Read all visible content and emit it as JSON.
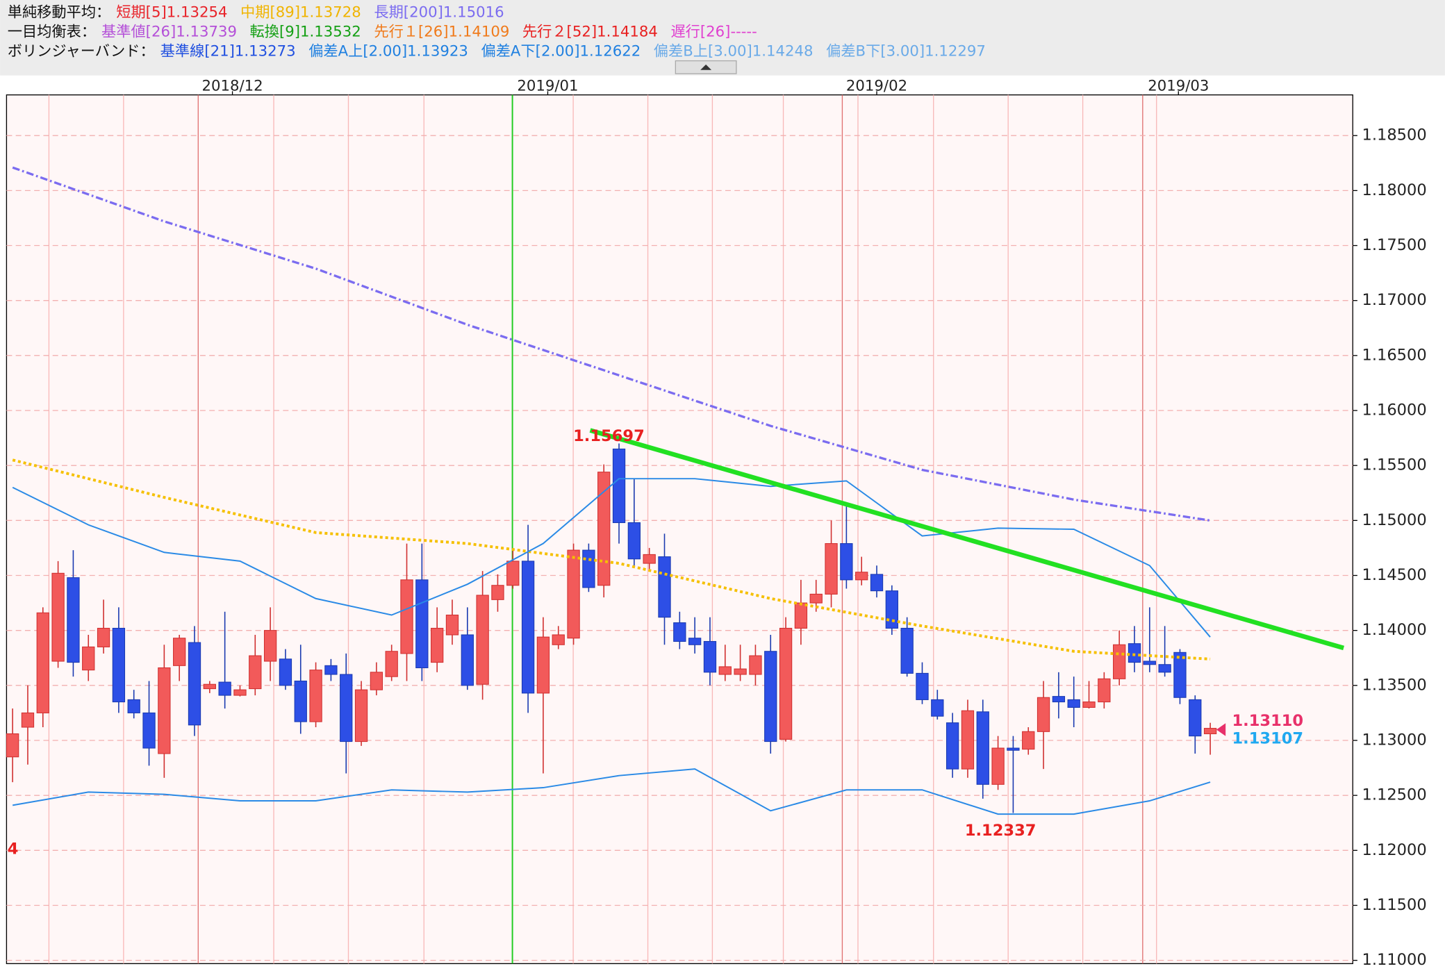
{
  "header": {
    "lines": [
      {
        "label": "単純移動平均：",
        "items": [
          {
            "text": "短期[5]1.13254",
            "color": "#e8232a"
          },
          {
            "text": "中期[89]1.13728",
            "color": "#f0b400"
          },
          {
            "text": "長期[200]1.15016",
            "color": "#7b6cf0"
          }
        ]
      },
      {
        "label": "一目均衡表：",
        "items": [
          {
            "text": "基準値[26]1.13739",
            "color": "#b44fd8"
          },
          {
            "text": "転換[9]1.13532",
            "color": "#15a015"
          },
          {
            "text": "先行１[26]1.14109",
            "color": "#f07a1a"
          },
          {
            "text": "先行２[52]1.14184",
            "color": "#e82020"
          },
          {
            "text": "遅行[26]-----",
            "color": "#e040d0"
          }
        ]
      },
      {
        "label": "ボリンジャーバンド：",
        "items": [
          {
            "text": "基準線[21]1.13273",
            "color": "#2050e0"
          },
          {
            "text": "偏差A上[2.00]1.13923",
            "color": "#2080e0"
          },
          {
            "text": "偏差A下[2.00]1.12622",
            "color": "#2080e0"
          },
          {
            "text": "偏差B上[3.00]1.14248",
            "color": "#6aaae8"
          },
          {
            "text": "偏差B下[3.00]1.12297",
            "color": "#6aaae8"
          }
        ]
      }
    ]
  },
  "chart_data": {
    "type": "candlestick",
    "xlim": [
      -0.4,
      88.4
    ],
    "xticks": [
      {
        "value": 14.5,
        "label": "2018/12"
      },
      {
        "value": 35.3,
        "label": "2019/01"
      },
      {
        "value": 57.0,
        "label": "2019/02"
      },
      {
        "value": 76.9,
        "label": "2019/03"
      }
    ],
    "ylim": [
      1.1097,
      1.1887
    ],
    "yticks": [
      {
        "value": 1.11,
        "label": "1.11000"
      },
      {
        "value": 1.115,
        "label": "1.11500"
      },
      {
        "value": 1.12,
        "label": "1.12000"
      },
      {
        "value": 1.125,
        "label": "1.12500"
      },
      {
        "value": 1.13,
        "label": "1.13000"
      },
      {
        "value": 1.135,
        "label": "1.13500"
      },
      {
        "value": 1.14,
        "label": "1.14000"
      },
      {
        "value": 1.145,
        "label": "1.14500"
      },
      {
        "value": 1.15,
        "label": "1.15000"
      },
      {
        "value": 1.155,
        "label": "1.15500"
      },
      {
        "value": 1.16,
        "label": "1.16000"
      },
      {
        "value": 1.165,
        "label": "1.16500"
      },
      {
        "value": 1.17,
        "label": "1.17000"
      },
      {
        "value": 1.175,
        "label": "1.17500"
      },
      {
        "value": 1.18,
        "label": "1.18000"
      },
      {
        "value": 1.185,
        "label": "1.18500"
      }
    ],
    "grid": true,
    "up_color": "#f25a5a",
    "down_color": "#2d4fe6",
    "candles": {
      "open": [
        1.1285,
        1.1312,
        1.1325,
        1.1372,
        1.1448,
        1.1364,
        1.1385,
        1.1402,
        1.1337,
        1.1325,
        1.1288,
        1.1368,
        1.1389,
        1.1347,
        1.1353,
        1.1341,
        1.1347,
        1.1372,
        1.1374,
        1.1354,
        1.1317,
        1.1368,
        1.136,
        1.1299,
        1.1346,
        1.1358,
        1.1379,
        1.1446,
        1.1371,
        1.1396,
        1.1396,
        1.1351,
        1.1428,
        1.1441,
        1.1463,
        1.1343,
        1.1387,
        1.1393,
        1.1473,
        1.1441,
        1.1565,
        1.1498,
        1.1461,
        1.1467,
        1.1407,
        1.1393,
        1.139,
        1.136,
        1.136,
        1.136,
        1.1381,
        1.1301,
        1.1402,
        1.1425,
        1.1433,
        1.1479,
        1.1446,
        1.1451,
        1.1436,
        1.1402,
        1.1361,
        1.1337,
        1.1316,
        1.1274,
        1.1326,
        1.126,
        1.1293,
        1.1292,
        1.1308,
        1.134,
        1.1337,
        1.133,
        1.1335,
        1.1356,
        1.1388,
        1.1372,
        1.1369,
        1.138,
        1.1337,
        1.1306
      ],
      "high": [
        1.1329,
        1.135,
        1.1421,
        1.1463,
        1.1473,
        1.1396,
        1.1428,
        1.1421,
        1.1346,
        1.1354,
        1.1387,
        1.1396,
        1.1404,
        1.1354,
        1.1417,
        1.135,
        1.1396,
        1.1421,
        1.1383,
        1.1387,
        1.1371,
        1.1374,
        1.1379,
        1.1354,
        1.1371,
        1.1387,
        1.1479,
        1.1479,
        1.1421,
        1.1428,
        1.1421,
        1.1454,
        1.1451,
        1.1475,
        1.1496,
        1.1412,
        1.1404,
        1.1479,
        1.1479,
        1.1551,
        1.157,
        1.1538,
        1.1475,
        1.1488,
        1.1417,
        1.1412,
        1.1412,
        1.1387,
        1.1387,
        1.1387,
        1.1396,
        1.1412,
        1.1446,
        1.1446,
        1.15,
        1.1515,
        1.1467,
        1.1459,
        1.1441,
        1.1412,
        1.1371,
        1.1346,
        1.1325,
        1.1337,
        1.1337,
        1.1304,
        1.1304,
        1.1312,
        1.1354,
        1.1362,
        1.1358,
        1.1354,
        1.1362,
        1.14,
        1.1404,
        1.1421,
        1.1404,
        1.1383,
        1.1341,
        1.1316
      ],
      "low": [
        1.1262,
        1.1278,
        1.1312,
        1.1366,
        1.1358,
        1.1354,
        1.1379,
        1.1325,
        1.132,
        1.1277,
        1.1266,
        1.1354,
        1.1304,
        1.1343,
        1.1329,
        1.134,
        1.1341,
        1.1354,
        1.1346,
        1.1306,
        1.1312,
        1.1354,
        1.127,
        1.1295,
        1.1341,
        1.1354,
        1.1354,
        1.1354,
        1.1362,
        1.1387,
        1.1346,
        1.1337,
        1.1417,
        1.1438,
        1.1325,
        1.127,
        1.1383,
        1.1387,
        1.1435,
        1.143,
        1.1479,
        1.1459,
        1.1454,
        1.1387,
        1.1383,
        1.1379,
        1.135,
        1.1354,
        1.1354,
        1.135,
        1.1288,
        1.1299,
        1.1387,
        1.1417,
        1.1421,
        1.1438,
        1.1441,
        1.143,
        1.1396,
        1.1358,
        1.1333,
        1.1319,
        1.1266,
        1.1266,
        1.1247,
        1.1255,
        1.1234,
        1.1287,
        1.1274,
        1.132,
        1.1312,
        1.1329,
        1.1329,
        1.135,
        1.1362,
        1.1362,
        1.1358,
        1.1333,
        1.1288,
        1.1287
      ],
      "close": [
        1.1306,
        1.1325,
        1.1416,
        1.1452,
        1.1371,
        1.1385,
        1.1402,
        1.1335,
        1.1325,
        1.1293,
        1.1366,
        1.1393,
        1.1314,
        1.1351,
        1.1341,
        1.1346,
        1.1377,
        1.14,
        1.135,
        1.1317,
        1.1364,
        1.136,
        1.1299,
        1.1346,
        1.1362,
        1.1381,
        1.1446,
        1.1366,
        1.1402,
        1.1414,
        1.135,
        1.1432,
        1.1441,
        1.1463,
        1.1343,
        1.1394,
        1.1396,
        1.1473,
        1.1439,
        1.1544,
        1.1498,
        1.1465,
        1.1469,
        1.1412,
        1.139,
        1.1387,
        1.1362,
        1.1367,
        1.1365,
        1.1377,
        1.1299,
        1.1402,
        1.1425,
        1.1433,
        1.1479,
        1.1446,
        1.1453,
        1.1436,
        1.1402,
        1.1361,
        1.1337,
        1.1322,
        1.1274,
        1.1327,
        1.126,
        1.1293,
        1.1291,
        1.1308,
        1.1339,
        1.1335,
        1.133,
        1.1335,
        1.1356,
        1.1387,
        1.1371,
        1.1369,
        1.1362,
        1.1339,
        1.1304,
        1.1311
      ]
    },
    "series": [
      {
        "color": "#7b6cf0",
        "style": "dashdot",
        "width": 2.5,
        "x": [
          0,
          10,
          20,
          30,
          40,
          50,
          60,
          70,
          79
        ],
        "values": [
          1.1821,
          1.1772,
          1.1729,
          1.1678,
          1.1632,
          1.1586,
          1.1546,
          1.1519,
          1.15
        ]
      },
      {
        "color": "#f5c000",
        "style": "dotted",
        "width": 3,
        "x": [
          0,
          10,
          20,
          30,
          40,
          50,
          60,
          70,
          79
        ],
        "values": [
          1.1555,
          1.1521,
          1.1489,
          1.1479,
          1.1461,
          1.1429,
          1.1404,
          1.1381,
          1.1374
        ]
      },
      {
        "color": "#2a8ae6",
        "style": "solid",
        "width": 1.5,
        "x": [
          0,
          5,
          10,
          15,
          20,
          25,
          30,
          35,
          40,
          45,
          50,
          55,
          60,
          65,
          70,
          75,
          79
        ],
        "values": [
          1.153,
          1.1496,
          1.1471,
          1.1463,
          1.1429,
          1.1414,
          1.1442,
          1.1479,
          1.1538,
          1.1538,
          1.1531,
          1.1536,
          1.1486,
          1.1493,
          1.1492,
          1.1459,
          1.1394
        ]
      },
      {
        "color": "#2a8ae6",
        "style": "solid",
        "width": 1.5,
        "x": [
          0,
          5,
          10,
          15,
          20,
          25,
          30,
          35,
          40,
          45,
          50,
          55,
          60,
          65,
          70,
          75,
          79
        ],
        "values": [
          1.1241,
          1.1253,
          1.1251,
          1.1245,
          1.1245,
          1.1255,
          1.1253,
          1.1257,
          1.1268,
          1.1274,
          1.1236,
          1.1255,
          1.1255,
          1.1233,
          1.1233,
          1.1245,
          1.1262
        ]
      },
      {
        "color": "#22e022",
        "style": "solid",
        "width": 5,
        "x": [
          38.1,
          87.8
        ],
        "values": [
          1.1582,
          1.1384
        ]
      }
    ],
    "annotations": [
      {
        "text": "1.15697",
        "color": "#e82020"
      },
      {
        "text": "1.12337",
        "color": "#e82020"
      },
      {
        "text": "1.13110",
        "color": "#e8306a"
      },
      {
        "text": "1.13107",
        "color": "#20a8f0"
      },
      {
        "text": "4",
        "color": "#e82020"
      }
    ]
  }
}
